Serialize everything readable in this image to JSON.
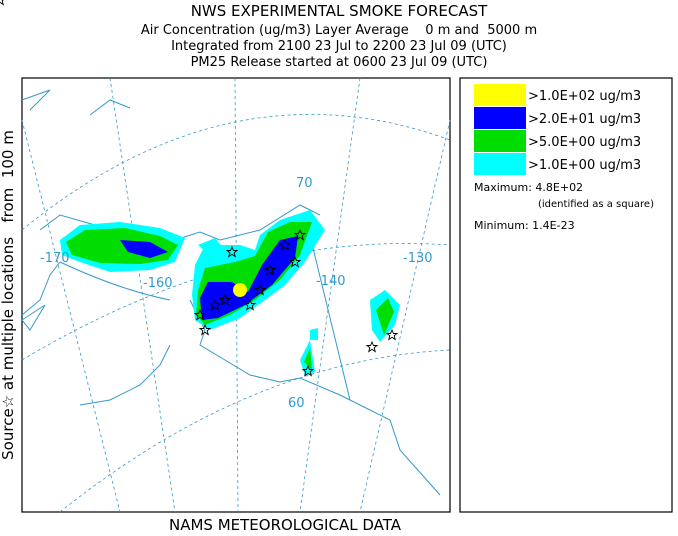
{
  "header": {
    "title": "NWS EXPERIMENTAL SMOKE FORECAST",
    "lines": [
      "Air Concentration (ug/m3) Layer Average    0 m and  5000 m",
      "Integrated from 2100 23 Jul to 2200 23 Jul 09 (UTC)",
      "PM25 Release started at 0600 23 Jul 09 (UTC)"
    ]
  },
  "side_label": "Source☆ at multiple locations   from  100 m",
  "map": {
    "grid_labels": [
      "-170",
      "-160",
      "70",
      "-140",
      "-130",
      "60"
    ]
  },
  "legend": {
    "items": [
      {
        "color": "#ffff00",
        "label": ">1.0E+02 ug/m3"
      },
      {
        "color": "#0000ff",
        "label": ">2.0E+01 ug/m3"
      },
      {
        "color": "#00dd00",
        "label": ">5.0E+00 ug/m3"
      },
      {
        "color": "#00ffff",
        "label": ">1.0E+00 ug/m3"
      }
    ],
    "maximum": "Maximum: 4.8E+02",
    "maximum_note": "(identified as a square)",
    "minimum": "Minimum: 1.4E-23"
  },
  "footer": "NAMS METEOROLOGICAL DATA"
}
